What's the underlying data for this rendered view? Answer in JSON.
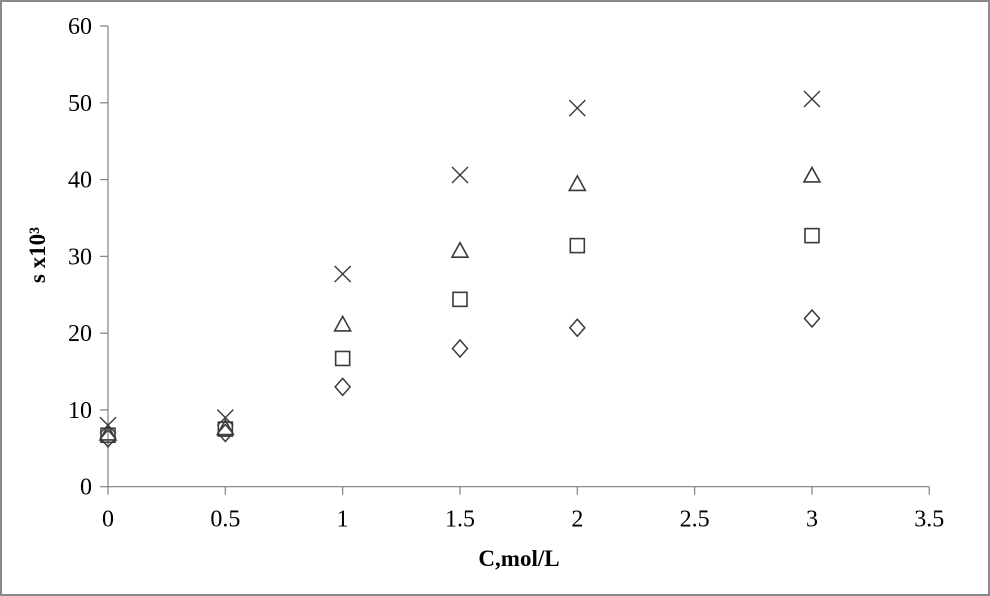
{
  "figure": {
    "background": "#ffffff",
    "border_color": "#8a8a8a"
  },
  "chart_data": {
    "type": "scatter",
    "title": "",
    "xlabel": "C,mol/L",
    "ylabel": "s x10³",
    "xlim": [
      0,
      3.5
    ],
    "ylim": [
      0,
      60
    ],
    "x_tick_labels": [
      "0",
      "0.5",
      "1",
      "1.5",
      "2",
      "2.5",
      "3",
      "3.5"
    ],
    "x_tick_values": [
      0,
      0.5,
      1,
      1.5,
      2,
      2.5,
      3,
      3.5
    ],
    "y_tick_labels": [
      "0",
      "10",
      "20",
      "30",
      "40",
      "50",
      "60"
    ],
    "y_tick_values": [
      0,
      10,
      20,
      30,
      40,
      50,
      60
    ],
    "grid": false,
    "legend": "none",
    "axis_color": "#808080",
    "marker_color": "#3a3a3a",
    "series": [
      {
        "name": "diamond-series",
        "marker": "diamond",
        "points": [
          [
            0,
            6.3
          ],
          [
            0.5,
            7.0
          ],
          [
            1,
            13.0
          ],
          [
            1.5,
            18.0
          ],
          [
            2,
            20.7
          ],
          [
            3,
            21.9
          ]
        ]
      },
      {
        "name": "square-series",
        "marker": "square",
        "points": [
          [
            0,
            6.7
          ],
          [
            0.5,
            7.5
          ],
          [
            1,
            16.7
          ],
          [
            1.5,
            24.4
          ],
          [
            2,
            31.4
          ],
          [
            3,
            32.7
          ]
        ]
      },
      {
        "name": "triangle-series",
        "marker": "triangle",
        "points": [
          [
            0,
            7.0
          ],
          [
            0.5,
            7.7
          ],
          [
            1,
            21.2
          ],
          [
            1.5,
            30.8
          ],
          [
            2,
            39.5
          ],
          [
            3,
            40.6
          ]
        ]
      },
      {
        "name": "cross-series",
        "marker": "cross",
        "points": [
          [
            0,
            8.0
          ],
          [
            0.5,
            9.0
          ],
          [
            1,
            27.7
          ],
          [
            1.5,
            40.6
          ],
          [
            2,
            49.3
          ],
          [
            3,
            50.5
          ]
        ]
      }
    ]
  }
}
